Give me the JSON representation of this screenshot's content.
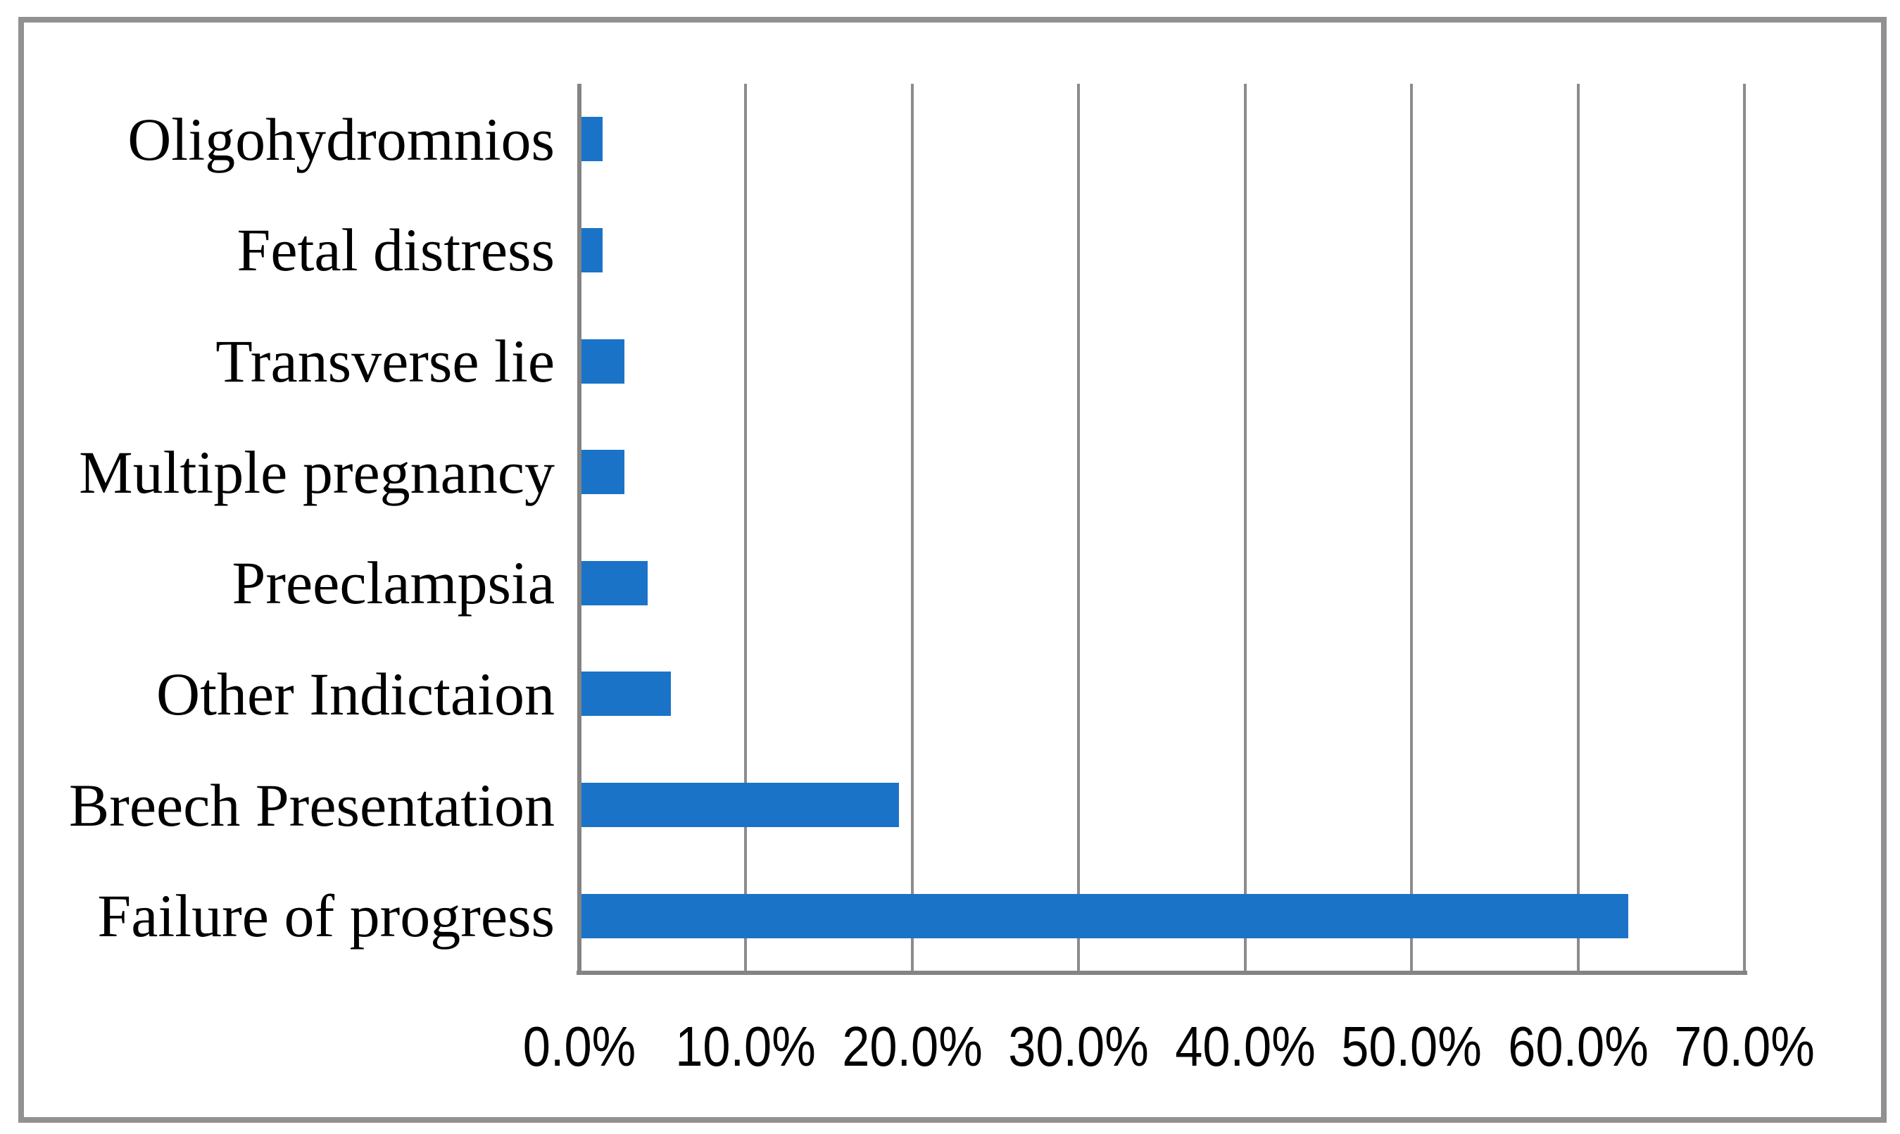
{
  "chart_data": {
    "type": "bar",
    "orientation": "horizontal",
    "title": "",
    "xlabel": "",
    "ylabel": "",
    "categories_top_to_bottom": [
      "Oligohydromnios",
      "Fetal distress",
      "Transverse lie",
      "Multiple pregnancy",
      "Preeclampsia",
      "Other Indictaion",
      "Breech Presentation",
      "Failure of progress"
    ],
    "values_percent": [
      1.4,
      1.4,
      2.7,
      2.7,
      4.1,
      5.5,
      19.2,
      63.0
    ],
    "value_unit": "%",
    "x_tick_labels": [
      "0.0%",
      "10.0%",
      "20.0%",
      "30.0%",
      "40.0%",
      "50.0%",
      "60.0%",
      "70.0%"
    ],
    "x_tick_values": [
      0,
      10,
      20,
      30,
      40,
      50,
      60,
      70
    ],
    "xlim": [
      0,
      70
    ],
    "grid": true,
    "legend": "none",
    "colors": {
      "bar": "#1B73C8",
      "gridline": "#8C8C8C",
      "axis": "#848484",
      "frame_border": "#919191",
      "background": "#FFFFFF",
      "text": "#000000"
    }
  }
}
